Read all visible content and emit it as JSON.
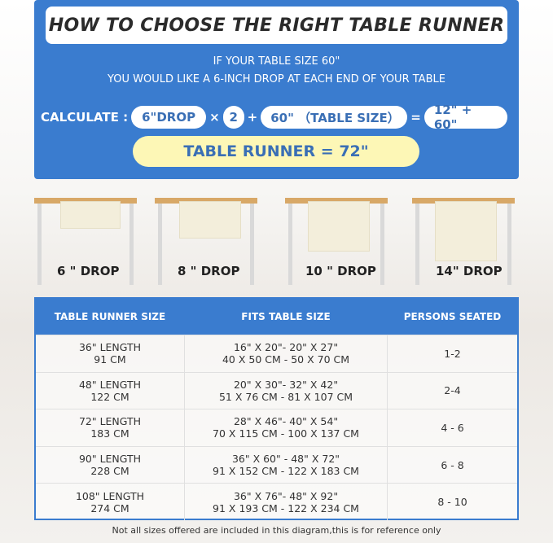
{
  "title": "HOW TO CHOOSE THE RIGHT TABLE RUNNER",
  "subtitle_line1": "IF YOUR TABLE SIZE 60\"",
  "subtitle_line2": "YOU WOULD LIKE A 6-INCH DROP AT EACH END OF YOUR TABLE",
  "calc": {
    "label": "CALCULATE :",
    "drop": "6\"DROP",
    "times": "×",
    "mult": "2",
    "plus": "+",
    "table": "60\" （TABLE SIZE）",
    "equals": "=",
    "sum": "12\" + 60\"",
    "result": "TABLE RUNNER = 72\""
  },
  "drops": [
    "6 \" DROP",
    "8 \" DROP",
    "10 \" DROP",
    "14\" DROP"
  ],
  "table": {
    "headers": [
      "TABLE RUNNER SIZE",
      "FITS TABLE SIZE",
      "PERSONS SEATED"
    ],
    "rows": [
      {
        "size1": "36\" LENGTH",
        "size2": "91 CM",
        "fit1": "16\" X 20\"- 20\" X 27\"",
        "fit2": "40 X 50 CM - 50 X 70 CM",
        "persons": "1-2"
      },
      {
        "size1": "48\" LENGTH",
        "size2": "122 CM",
        "fit1": "20\" X 30\"- 32\" X 42\"",
        "fit2": "51 X 76 CM - 81 X 107 CM",
        "persons": "2-4"
      },
      {
        "size1": "72\" LENGTH",
        "size2": "183 CM",
        "fit1": "28\" X 46\"- 40\" X 54\"",
        "fit2": "70 X 115 CM - 100 X 137 CM",
        "persons": "4 - 6"
      },
      {
        "size1": "90\" LENGTH",
        "size2": "228 CM",
        "fit1": "36\" X 60\" - 48\" X 72\"",
        "fit2": "91 X 152 CM - 122 X 183 CM",
        "persons": "6 - 8"
      },
      {
        "size1": "108\" LENGTH",
        "size2": "274 CM",
        "fit1": "36\" X 76\"- 48\" X 92\"",
        "fit2": "91 X 193 CM - 122 X 234 CM",
        "persons": "8 - 10"
      }
    ]
  },
  "note": "Not all sizes offered are included in this diagram,this is for reference only"
}
